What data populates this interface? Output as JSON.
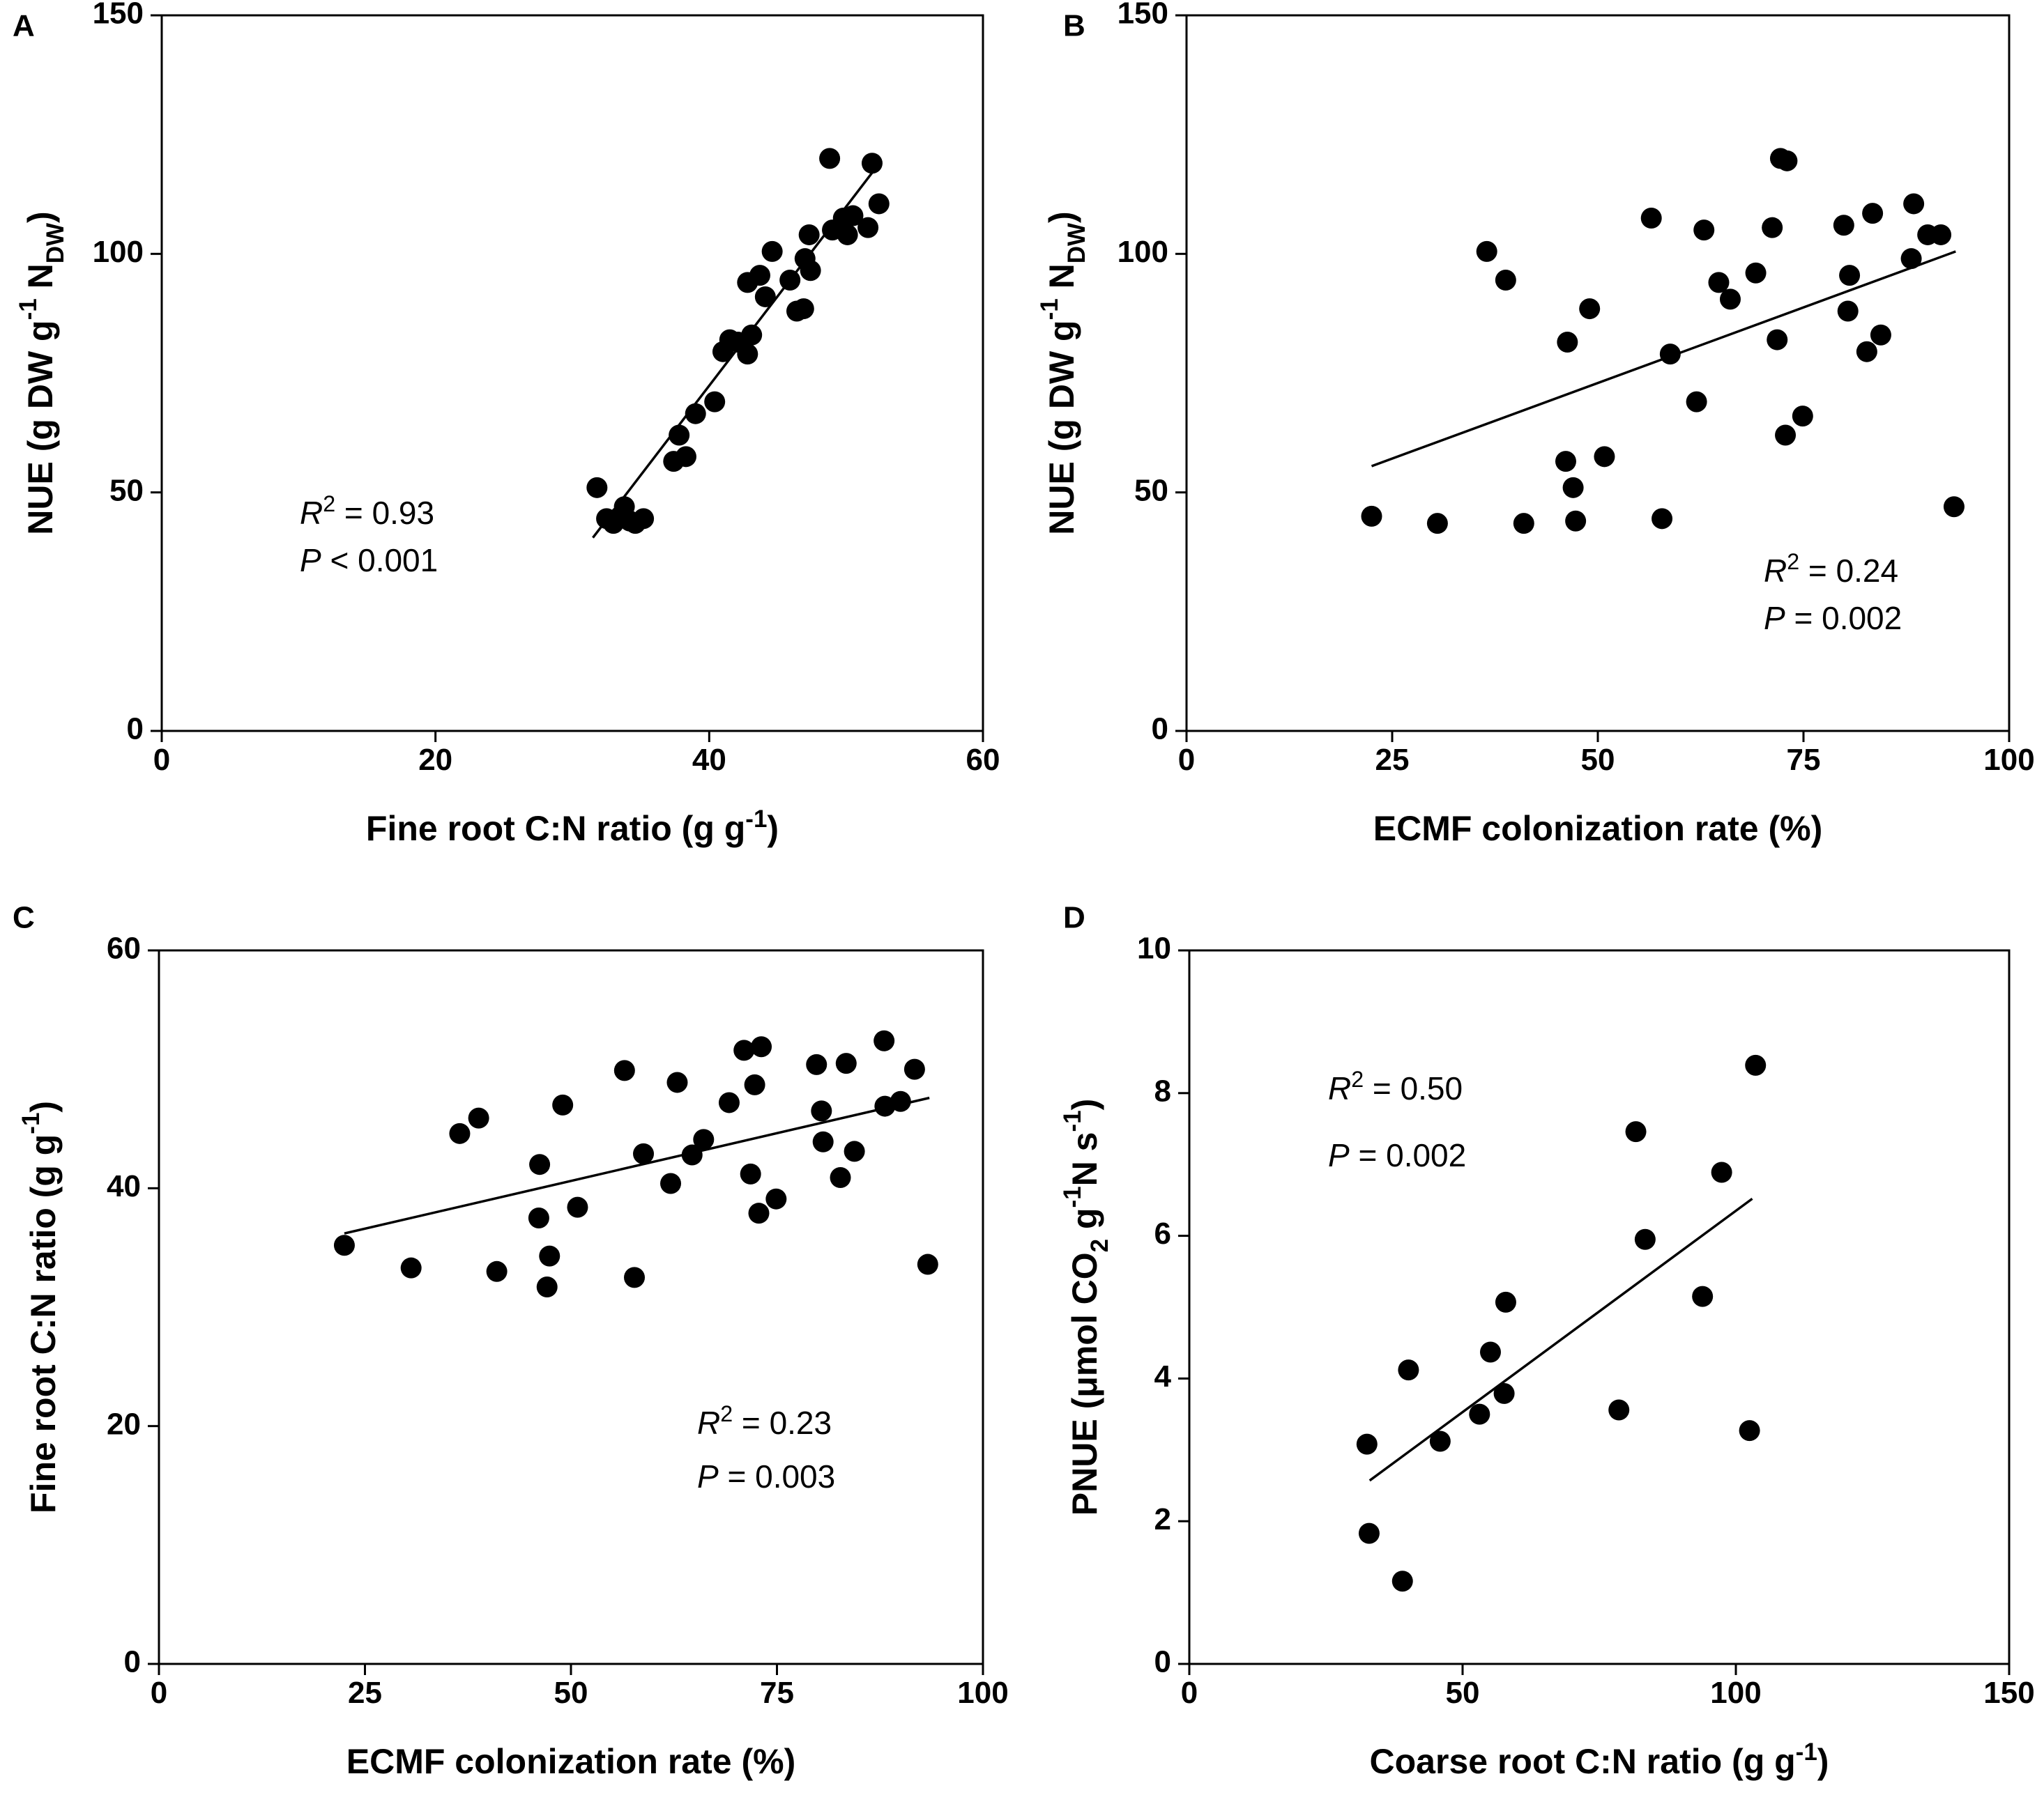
{
  "chart_data": [
    {
      "panel": "A",
      "type": "scatter",
      "xlabel": "Fine root C:N ratio (g g⁻¹)",
      "ylabel": "NUE (g DW g⁻¹ N_DW)",
      "xlabel_parts": [
        {
          "t": "Fine root C:N ratio (g g"
        },
        {
          "t": "-1",
          "sup": true
        },
        {
          "t": ")"
        }
      ],
      "ylabel_parts": [
        {
          "t": "NUE (g DW g"
        },
        {
          "t": "-1",
          "sup": true
        },
        {
          "t": " N"
        },
        {
          "t": "DW",
          "sub": true
        },
        {
          "t": ")"
        }
      ],
      "xlim": [
        0,
        60
      ],
      "ylim": [
        0,
        150
      ],
      "xticks": [
        0,
        20,
        40,
        60
      ],
      "yticks": [
        0,
        50,
        100,
        150
      ],
      "points": [
        [
          31.8,
          51
        ],
        [
          32.5,
          44.5
        ],
        [
          33,
          43.5
        ],
        [
          33.5,
          45
        ],
        [
          33.8,
          47
        ],
        [
          34.2,
          44
        ],
        [
          34.6,
          43.5
        ],
        [
          35.2,
          44.5
        ],
        [
          37.4,
          56.5
        ],
        [
          37.8,
          62
        ],
        [
          38.3,
          57.5
        ],
        [
          39,
          66.5
        ],
        [
          40.4,
          69
        ],
        [
          41,
          79.5
        ],
        [
          41.5,
          82
        ],
        [
          42.1,
          81.5
        ],
        [
          42.8,
          79
        ],
        [
          42.8,
          94
        ],
        [
          43.1,
          83
        ],
        [
          43.7,
          95.5
        ],
        [
          44.1,
          91
        ],
        [
          44.6,
          100.5
        ],
        [
          45.9,
          94.5
        ],
        [
          46.4,
          88
        ],
        [
          46.9,
          88.5
        ],
        [
          47,
          99
        ],
        [
          47.3,
          104
        ],
        [
          47.4,
          96.5
        ],
        [
          48.8,
          120
        ],
        [
          49,
          105
        ],
        [
          49.8,
          107.5
        ],
        [
          50.1,
          104
        ],
        [
          50.5,
          108
        ],
        [
          51.6,
          105.5
        ],
        [
          51.9,
          119
        ],
        [
          52.4,
          110.5
        ]
      ],
      "fit_line": {
        "x": [
          31.5,
          52.3
        ],
        "y": [
          40.5,
          118.5
        ]
      },
      "annotations": [
        {
          "label": "R",
          "exp": "2",
          "text": " = 0.93"
        },
        {
          "label": "P",
          "text": " < 0.001"
        }
      ]
    },
    {
      "panel": "B",
      "type": "scatter",
      "xlabel": "ECMF colonization rate (%)",
      "ylabel": "NUE (g DW g⁻¹ N_DW)",
      "xlabel_parts": [
        {
          "t": "ECMF colonization rate (%)"
        }
      ],
      "ylabel_parts": [
        {
          "t": "NUE (g DW g"
        },
        {
          "t": "-1",
          "sup": true
        },
        {
          "t": " N"
        },
        {
          "t": "DW",
          "sub": true
        },
        {
          "t": ")"
        }
      ],
      "xlim": [
        0,
        100
      ],
      "ylim": [
        0,
        150
      ],
      "xticks": [
        0,
        25,
        50,
        75,
        100
      ],
      "yticks": [
        0,
        50,
        100,
        150
      ],
      "points": [
        [
          22.5,
          45
        ],
        [
          30.5,
          43.5
        ],
        [
          36.5,
          100.5
        ],
        [
          38.8,
          94.5
        ],
        [
          41,
          43.5
        ],
        [
          46.1,
          56.5
        ],
        [
          46.3,
          81.5
        ],
        [
          47,
          51
        ],
        [
          47.3,
          44
        ],
        [
          49,
          88.5
        ],
        [
          50.8,
          57.5
        ],
        [
          56.5,
          107.5
        ],
        [
          57.8,
          44.5
        ],
        [
          58.8,
          79
        ],
        [
          62,
          69
        ],
        [
          62.9,
          105
        ],
        [
          64.7,
          94
        ],
        [
          66.1,
          90.5
        ],
        [
          69.2,
          96
        ],
        [
          71.2,
          105.5
        ],
        [
          71.8,
          82
        ],
        [
          72.2,
          120
        ],
        [
          72.8,
          62
        ],
        [
          73,
          119.5
        ],
        [
          74.9,
          66
        ],
        [
          79.9,
          106
        ],
        [
          80.4,
          88
        ],
        [
          80.6,
          95.5
        ],
        [
          82.7,
          79.5
        ],
        [
          83.4,
          108.5
        ],
        [
          84.4,
          83
        ],
        [
          88.1,
          99
        ],
        [
          88.4,
          110.5
        ],
        [
          90.1,
          104
        ],
        [
          91.7,
          104
        ],
        [
          93.3,
          47
        ]
      ],
      "fit_line": {
        "x": [
          22.5,
          93.5
        ],
        "y": [
          55.5,
          100.5
        ]
      },
      "annotations": [
        {
          "label": "R",
          "exp": "2",
          "text": " = 0.24"
        },
        {
          "label": "P",
          "text": " = 0.002"
        }
      ]
    },
    {
      "panel": "C",
      "type": "scatter",
      "xlabel": "ECMF colonization rate (%)",
      "ylabel": "Fine root C:N ratio (g g⁻¹)",
      "xlabel_parts": [
        {
          "t": "ECMF colonization rate (%)"
        }
      ],
      "ylabel_parts": [
        {
          "t": "Fine root C:N ratio (g g"
        },
        {
          "t": "-1",
          "sup": true
        },
        {
          "t": ")"
        }
      ],
      "xlim": [
        0,
        100
      ],
      "ylim": [
        0,
        60
      ],
      "xticks": [
        0,
        25,
        50,
        75,
        100
      ],
      "yticks": [
        0,
        20,
        40,
        60
      ],
      "points": [
        [
          22.5,
          35.2
        ],
        [
          30.6,
          33.3
        ],
        [
          36.5,
          44.6
        ],
        [
          38.8,
          45.9
        ],
        [
          41,
          33
        ],
        [
          46.1,
          37.5
        ],
        [
          46.2,
          42
        ],
        [
          47.1,
          31.7
        ],
        [
          47.4,
          34.3
        ],
        [
          49,
          47
        ],
        [
          50.8,
          38.4
        ],
        [
          56.5,
          49.9
        ],
        [
          57.7,
          32.5
        ],
        [
          58.8,
          42.9
        ],
        [
          62.1,
          40.4
        ],
        [
          62.9,
          48.9
        ],
        [
          64.7,
          42.8
        ],
        [
          66.1,
          44.1
        ],
        [
          69.2,
          47.2
        ],
        [
          71,
          51.6
        ],
        [
          71.8,
          41.2
        ],
        [
          72.3,
          48.7
        ],
        [
          72.8,
          37.9
        ],
        [
          73.1,
          51.9
        ],
        [
          74.9,
          39.1
        ],
        [
          79.8,
          50.4
        ],
        [
          80.4,
          46.5
        ],
        [
          80.6,
          43.9
        ],
        [
          82.7,
          40.9
        ],
        [
          83.4,
          50.5
        ],
        [
          84.4,
          43.1
        ],
        [
          88,
          52.4
        ],
        [
          88.1,
          46.9
        ],
        [
          90,
          47.3
        ],
        [
          91.7,
          50
        ],
        [
          93.3,
          33.6
        ]
      ],
      "fit_line": {
        "x": [
          22.5,
          93.5
        ],
        "y": [
          36.2,
          47.6
        ]
      },
      "annotations": [
        {
          "label": "R",
          "exp": "2",
          "text": " = 0.23"
        },
        {
          "label": "P",
          "text": " = 0.003"
        }
      ]
    },
    {
      "panel": "D",
      "type": "scatter",
      "xlabel": "Coarse root C:N ratio (g g⁻¹)",
      "ylabel": "PNUE (μmol CO₂ g⁻¹ N s⁻¹)",
      "xlabel_parts": [
        {
          "t": "Coarse root C:N ratio (g g"
        },
        {
          "t": "-1",
          "sup": true
        },
        {
          "t": ")"
        }
      ],
      "ylabel_parts": [
        {
          "t": "PNUE (μmol CO"
        },
        {
          "t": "2",
          "sub": true
        },
        {
          "t": " g"
        },
        {
          "t": "-1",
          "sup": true
        },
        {
          "t": "N s"
        },
        {
          "t": "-1",
          "sup": true
        },
        {
          "t": ")"
        }
      ],
      "xlim": [
        0,
        150
      ],
      "ylim": [
        0,
        10
      ],
      "xticks": [
        0,
        50,
        100,
        150
      ],
      "yticks": [
        0,
        2,
        4,
        6,
        8,
        10
      ],
      "points": [
        [
          32.5,
          3.08
        ],
        [
          32.9,
          1.83
        ],
        [
          39,
          1.16
        ],
        [
          40.1,
          4.12
        ],
        [
          45.9,
          3.12
        ],
        [
          53.1,
          3.5
        ],
        [
          55.1,
          4.37
        ],
        [
          57.6,
          3.79
        ],
        [
          57.9,
          5.07
        ],
        [
          78.6,
          3.56
        ],
        [
          81.7,
          7.46
        ],
        [
          83.4,
          5.95
        ],
        [
          93.9,
          5.15
        ],
        [
          97.4,
          6.89
        ],
        [
          102.5,
          3.27
        ],
        [
          103.6,
          8.39
        ]
      ],
      "fit_line": {
        "x": [
          33,
          103
        ],
        "y": [
          2.57,
          6.52
        ]
      },
      "annotations": [
        {
          "label": "R",
          "exp": "2",
          "text": " = 0.50"
        },
        {
          "label": "P",
          "text": " = 0.002"
        }
      ]
    }
  ]
}
